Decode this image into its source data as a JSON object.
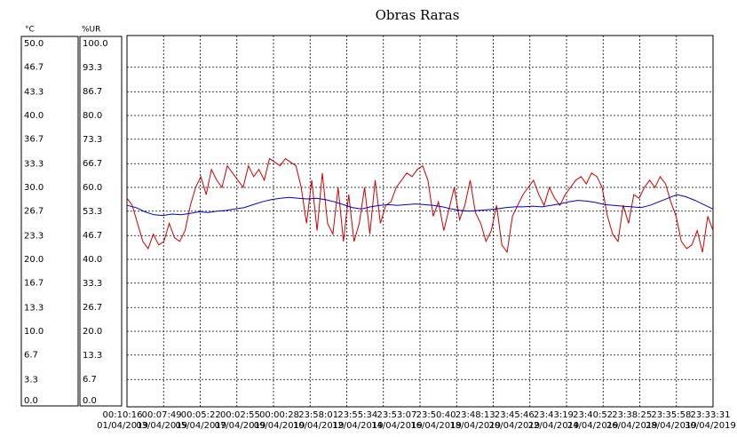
{
  "chart_data": {
    "type": "line",
    "title": "Obras Raras",
    "ylabel": "°C",
    "y2label": "%UR",
    "ylim": [
      0,
      50
    ],
    "yticks": [
      {
        "value": 0,
        "label": "0.0"
      },
      3.3,
      6.7,
      {
        "value": 10,
        "label": "10.0"
      },
      13.3,
      16.7,
      {
        "value": 20,
        "label": "20.0"
      },
      23.3,
      26.7,
      {
        "value": 30,
        "label": "30.0"
      },
      33.3,
      36.7,
      {
        "value": 40,
        "label": "40.0"
      },
      43.3,
      46.7,
      {
        "value": 50,
        "label": "50.0"
      }
    ],
    "y2lim": [
      0,
      100
    ],
    "y2ticks": [
      {
        "value": 0,
        "label": "0.0"
      },
      6.7,
      13.3,
      {
        "value": 20,
        "label": "20.0"
      },
      26.7,
      33.3,
      {
        "value": 40,
        "label": "40.0"
      },
      46.7,
      53.3,
      {
        "value": 60,
        "label": "60.0"
      },
      66.7,
      73.3,
      {
        "value": 80,
        "label": "80.0"
      },
      86.7,
      93.3,
      {
        "value": 100,
        "label": "100.0"
      }
    ],
    "grid": true,
    "xtick_labels": [
      {
        "time": "00:10:16",
        "date": "01/04/2019"
      },
      {
        "time": "00:07:49",
        "date": "03/04/2019"
      },
      {
        "time": "00:05:22",
        "date": "05/04/2019"
      },
      {
        "time": "00:02:55",
        "date": "07/04/2019"
      },
      {
        "time": "00:00:28",
        "date": "09/04/2019"
      },
      {
        "time": "23:58:01",
        "date": "10/04/2019"
      },
      {
        "time": "23:55:34",
        "date": "12/04/2019"
      },
      {
        "time": "23:53:07",
        "date": "14/04/2019"
      },
      {
        "time": "23:50:40",
        "date": "16/04/2019"
      },
      {
        "time": "23:48:13",
        "date": "18/04/2019"
      },
      {
        "time": "23:45:46",
        "date": "20/04/2019"
      },
      {
        "time": "23:43:19",
        "date": "22/04/2019"
      },
      {
        "time": "23:40:52",
        "date": "24/04/2019"
      },
      {
        "time": "23:38:25",
        "date": "26/04/2019"
      },
      {
        "time": "23:35:58",
        "date": "28/04/2019"
      },
      {
        "time": "23:33:31",
        "date": "30/04/2019"
      }
    ],
    "series": [
      {
        "color": "#cc0000",
        "axis": "y2",
        "values": [
          57,
          55,
          50,
          45,
          43,
          47,
          44,
          45,
          50,
          46,
          45,
          48,
          55,
          60,
          63,
          58,
          65,
          62,
          60,
          66,
          64,
          62,
          60,
          66,
          63,
          65,
          62,
          68,
          67,
          66,
          68,
          67,
          66,
          60,
          50,
          62,
          48,
          64,
          50,
          47,
          60,
          45,
          58,
          45,
          50,
          60,
          47,
          62,
          50,
          55,
          56,
          60,
          62,
          64,
          63,
          65,
          66,
          62,
          52,
          56,
          48,
          54,
          60,
          51,
          55,
          62,
          53,
          50,
          45,
          48,
          55,
          44,
          42,
          52,
          55,
          58,
          60,
          62,
          58,
          55,
          60,
          57,
          55,
          58,
          60,
          62,
          63,
          61,
          64,
          63,
          60,
          52,
          47,
          45,
          55,
          50,
          58,
          57,
          60,
          62,
          60,
          63,
          61,
          56,
          52,
          45,
          43,
          44,
          48,
          42,
          52,
          48
        ]
      },
      {
        "color": "#0000cc",
        "axis": "y",
        "values": [
          27.5,
          27.2,
          26.6,
          26.2,
          26.1,
          26.3,
          26.2,
          26.4,
          26.6,
          26.5,
          26.7,
          26.8,
          27,
          27.2,
          27.6,
          28,
          28.3,
          28.5,
          28.6,
          28.5,
          28.4,
          28.5,
          28.3,
          28,
          27.6,
          27.2,
          27,
          27.3,
          27.5,
          27.6,
          27.5,
          27.6,
          27.7,
          27.6,
          27.5,
          27.3,
          27,
          26.8,
          26.7,
          26.8,
          26.9,
          27,
          27.2,
          27.3,
          27.3,
          27.4,
          27.3,
          27.5,
          27.7,
          28,
          28.2,
          28.1,
          27.9,
          27.6,
          27.5,
          27.4,
          27.3,
          27.2,
          27.5,
          28,
          28.5,
          29,
          28.7,
          28.2,
          27.6,
          27
        ]
      }
    ]
  }
}
